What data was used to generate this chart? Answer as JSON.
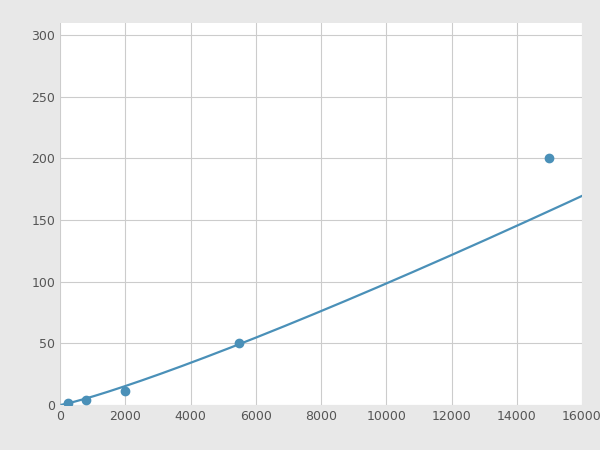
{
  "x": [
    250,
    800,
    2000,
    5500,
    15000
  ],
  "y": [
    2,
    4,
    11,
    50,
    200
  ],
  "line_color": "#4a90b8",
  "marker_color": "#4a90b8",
  "marker_size": 6,
  "line_width": 1.6,
  "xlim": [
    0,
    16000
  ],
  "ylim": [
    0,
    310
  ],
  "xticks": [
    0,
    2000,
    4000,
    6000,
    8000,
    10000,
    12000,
    14000,
    16000
  ],
  "yticks": [
    0,
    50,
    100,
    150,
    200,
    250,
    300
  ],
  "grid_color": "#cccccc",
  "plot_bg": "#ffffff",
  "figure_bg": "#e8e8e8",
  "tick_labelsize": 9,
  "tick_color": "#555555"
}
